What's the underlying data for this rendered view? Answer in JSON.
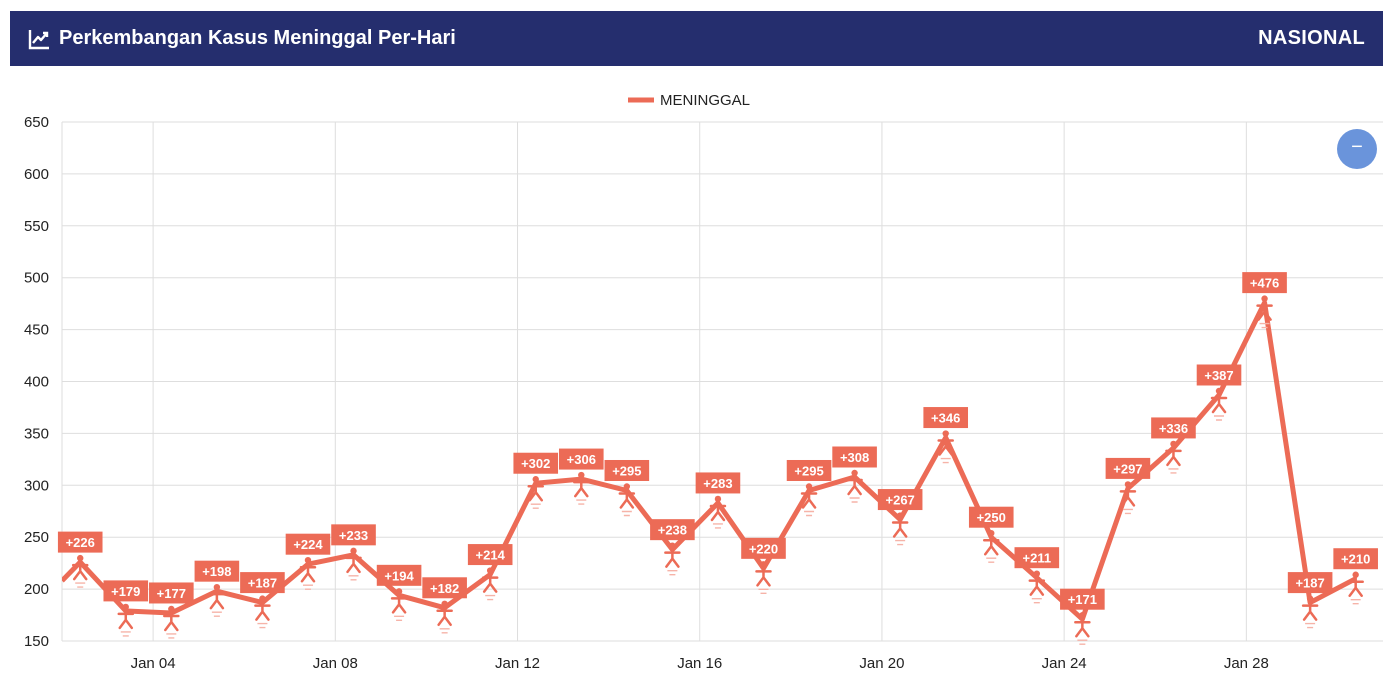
{
  "header": {
    "title": "Perkembangan Kasus Meninggal Per-Hari",
    "scope": "NASIONAL",
    "icon": "line-chart-icon",
    "background": "#252e6e"
  },
  "zoom_button": {
    "icon": "minus-icon",
    "label": "−",
    "color": "#6a94db"
  },
  "chart_data": {
    "type": "line",
    "title": "",
    "xlabel": "",
    "ylabel": "",
    "ylim": [
      150,
      650
    ],
    "yticks": [
      150,
      200,
      250,
      300,
      350,
      400,
      450,
      500,
      550,
      600,
      650
    ],
    "grid": true,
    "legend": "top-center",
    "x_tick_labels": [
      "Jan 04",
      "Jan 08",
      "Jan 12",
      "Jan 16",
      "Jan 20",
      "Jan 24",
      "Jan 28"
    ],
    "x_tick_days": [
      4,
      8,
      12,
      16,
      20,
      24,
      28
    ],
    "x_range_days": [
      2.0,
      31.0
    ],
    "series": [
      {
        "name": "MENINGGAL",
        "color": "#ec6b56",
        "marker": "person-icon",
        "leading_value": 208,
        "days": [
          2.4,
          3.4,
          4.4,
          5.4,
          6.4,
          7.4,
          8.4,
          9.4,
          10.4,
          11.4,
          12.4,
          13.4,
          14.4,
          15.4,
          16.4,
          17.4,
          18.4,
          19.4,
          20.4,
          21.4,
          22.4,
          23.4,
          24.4,
          25.4,
          26.4,
          27.4,
          28.4,
          29.4,
          30.4
        ],
        "values": [
          226,
          179,
          177,
          198,
          187,
          224,
          233,
          194,
          182,
          214,
          302,
          306,
          295,
          238,
          283,
          220,
          295,
          308,
          267,
          346,
          250,
          211,
          171,
          297,
          336,
          387,
          476,
          187,
          210
        ],
        "labels": [
          "+226",
          "+179",
          "+177",
          "+198",
          "+187",
          "+224",
          "+233",
          "+194",
          "+182",
          "+214",
          "+302",
          "+306",
          "+295",
          "+238",
          "+283",
          "+220",
          "+295",
          "+308",
          "+267",
          "+346",
          "+250",
          "+211",
          "+171",
          "+297",
          "+336",
          "+387",
          "+476",
          "+187",
          "+210"
        ]
      }
    ]
  }
}
